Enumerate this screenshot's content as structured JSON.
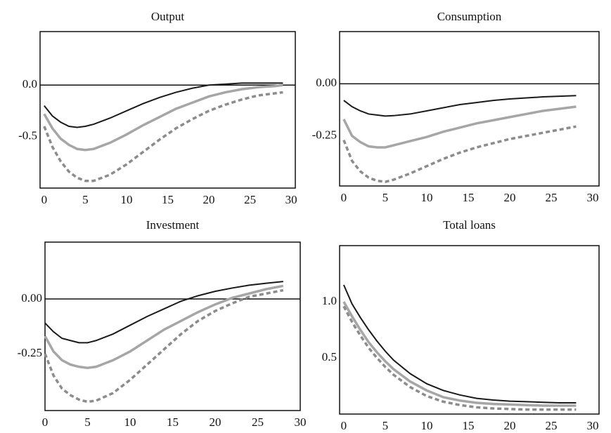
{
  "chart_data": [
    {
      "type": "line",
      "title": "Output",
      "zero_line": true,
      "xlim": [
        -0.5,
        30.5
      ],
      "xticks": [
        0,
        5,
        10,
        15,
        20,
        25,
        30
      ],
      "ylim": [
        -1.0,
        0.52
      ],
      "yticks": [
        {
          "value": 0,
          "label": "0.0"
        },
        -0.5
      ],
      "x": [
        0,
        1,
        2,
        3,
        4,
        5,
        6,
        8,
        10,
        12,
        14,
        16,
        18,
        20,
        22,
        24,
        26,
        28,
        29
      ],
      "series": [
        {
          "color": "#1a1a1a",
          "style": "solid",
          "values": [
            -0.2,
            -0.3,
            -0.36,
            -0.4,
            -0.41,
            -0.4,
            -0.38,
            -0.32,
            -0.25,
            -0.18,
            -0.12,
            -0.07,
            -0.03,
            0.0,
            0.01,
            0.02,
            0.02,
            0.02,
            0.02
          ]
        },
        {
          "color": "#a6a6a6",
          "style": "solid",
          "values": [
            -0.28,
            -0.42,
            -0.52,
            -0.58,
            -0.62,
            -0.63,
            -0.62,
            -0.56,
            -0.48,
            -0.39,
            -0.31,
            -0.23,
            -0.17,
            -0.11,
            -0.07,
            -0.04,
            -0.02,
            -0.01,
            0.0
          ]
        },
        {
          "color": "#8c8c8c",
          "style": "dashed",
          "values": [
            -0.4,
            -0.6,
            -0.74,
            -0.84,
            -0.9,
            -0.93,
            -0.93,
            -0.87,
            -0.77,
            -0.65,
            -0.53,
            -0.42,
            -0.33,
            -0.25,
            -0.19,
            -0.14,
            -0.1,
            -0.08,
            -0.07
          ]
        }
      ]
    },
    {
      "type": "line",
      "title": "Consumption",
      "zero_line": true,
      "xlim": [
        -0.5,
        30.76
      ],
      "xticks": [
        0,
        5,
        10,
        15,
        20,
        25,
        30
      ],
      "ylim": [
        -0.49,
        0.25
      ],
      "yticks": [
        {
          "value": 0,
          "label": "0.00"
        },
        -0.25
      ],
      "x": [
        0,
        1,
        2,
        3,
        4,
        5,
        6,
        8,
        10,
        12,
        14,
        16,
        18,
        20,
        22,
        24,
        26,
        28
      ],
      "series": [
        {
          "color": "#1a1a1a",
          "style": "solid",
          "values": [
            -0.08,
            -0.11,
            -0.13,
            -0.145,
            -0.15,
            -0.155,
            -0.153,
            -0.145,
            -0.13,
            -0.115,
            -0.1,
            -0.09,
            -0.08,
            -0.073,
            -0.068,
            -0.063,
            -0.06,
            -0.057
          ]
        },
        {
          "color": "#a6a6a6",
          "style": "solid",
          "values": [
            -0.17,
            -0.25,
            -0.28,
            -0.3,
            -0.305,
            -0.305,
            -0.295,
            -0.275,
            -0.255,
            -0.23,
            -0.21,
            -0.19,
            -0.175,
            -0.16,
            -0.145,
            -0.13,
            -0.12,
            -0.11
          ]
        },
        {
          "color": "#8c8c8c",
          "style": "dashed",
          "values": [
            -0.27,
            -0.37,
            -0.42,
            -0.45,
            -0.465,
            -0.47,
            -0.46,
            -0.43,
            -0.395,
            -0.36,
            -0.33,
            -0.305,
            -0.285,
            -0.265,
            -0.25,
            -0.235,
            -0.22,
            -0.205
          ]
        }
      ]
    },
    {
      "type": "line",
      "title": "Investment",
      "zero_line": true,
      "xlim": [
        0,
        30
      ],
      "xticks": [
        0,
        5,
        10,
        15,
        20,
        25,
        30
      ],
      "ylim": [
        -0.51,
        0.26
      ],
      "yticks": [
        {
          "value": 0,
          "label": "0.00"
        },
        -0.25
      ],
      "x": [
        0,
        1,
        2,
        3,
        4,
        5,
        6,
        8,
        10,
        12,
        14,
        16,
        18,
        20,
        22,
        24,
        26,
        28
      ],
      "series": [
        {
          "color": "#1a1a1a",
          "style": "solid",
          "values": [
            -0.11,
            -0.15,
            -0.18,
            -0.19,
            -0.2,
            -0.2,
            -0.19,
            -0.16,
            -0.12,
            -0.08,
            -0.045,
            -0.01,
            0.015,
            0.035,
            0.05,
            0.063,
            0.072,
            0.08
          ]
        },
        {
          "color": "#a6a6a6",
          "style": "solid",
          "values": [
            -0.17,
            -0.24,
            -0.28,
            -0.3,
            -0.31,
            -0.315,
            -0.31,
            -0.28,
            -0.24,
            -0.19,
            -0.14,
            -0.1,
            -0.06,
            -0.025,
            0.005,
            0.025,
            0.045,
            0.06
          ]
        },
        {
          "color": "#8c8c8c",
          "style": "dashed",
          "values": [
            -0.25,
            -0.35,
            -0.41,
            -0.44,
            -0.46,
            -0.47,
            -0.465,
            -0.43,
            -0.37,
            -0.3,
            -0.23,
            -0.16,
            -0.1,
            -0.055,
            -0.02,
            0.01,
            0.025,
            0.04
          ]
        }
      ]
    },
    {
      "type": "line",
      "title": "Total loans",
      "zero_line": false,
      "xlim": [
        -0.5,
        30.76
      ],
      "xticks": [
        0,
        5,
        10,
        15,
        20,
        25,
        30
      ],
      "ylim": [
        0,
        1.5
      ],
      "yticks": [
        {
          "value": 1,
          "label": "1.0"
        },
        0.5
      ],
      "x": [
        0,
        1,
        2,
        3,
        4,
        5,
        6,
        8,
        10,
        12,
        14,
        16,
        18,
        20,
        22,
        24,
        26,
        28
      ],
      "series": [
        {
          "color": "#1a1a1a",
          "style": "solid",
          "values": [
            1.15,
            0.98,
            0.86,
            0.75,
            0.65,
            0.56,
            0.48,
            0.36,
            0.27,
            0.21,
            0.17,
            0.14,
            0.125,
            0.115,
            0.11,
            0.105,
            0.1,
            0.1
          ]
        },
        {
          "color": "#a6a6a6",
          "style": "solid",
          "values": [
            1.0,
            0.87,
            0.75,
            0.64,
            0.55,
            0.47,
            0.4,
            0.29,
            0.21,
            0.15,
            0.12,
            0.1,
            0.09,
            0.085,
            0.08,
            0.075,
            0.075,
            0.075
          ]
        },
        {
          "color": "#8c8c8c",
          "style": "dashed",
          "values": [
            0.96,
            0.82,
            0.7,
            0.59,
            0.5,
            0.42,
            0.35,
            0.24,
            0.16,
            0.11,
            0.08,
            0.06,
            0.05,
            0.045,
            0.04,
            0.04,
            0.04,
            0.04
          ]
        }
      ]
    }
  ]
}
